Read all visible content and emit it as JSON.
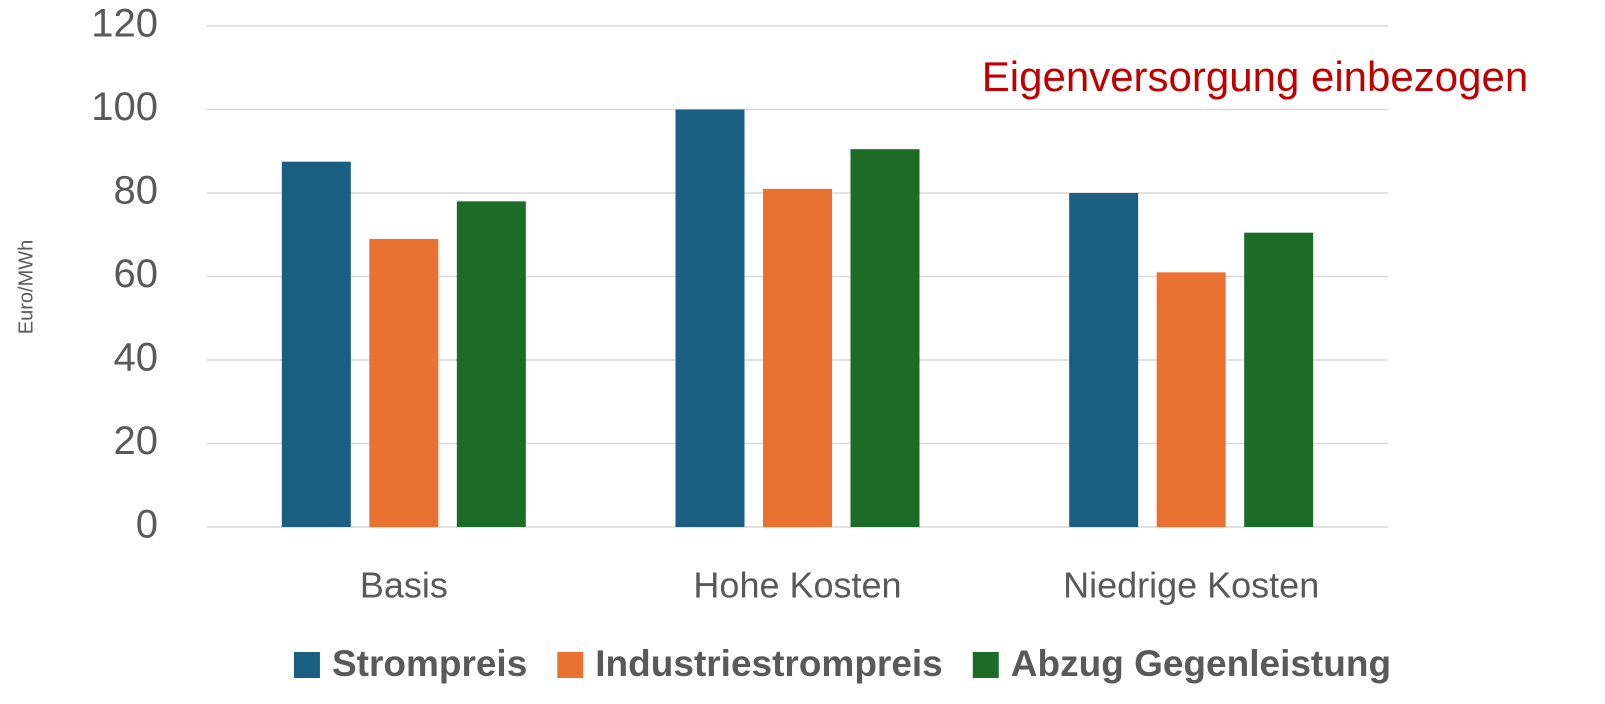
{
  "chart_data": {
    "type": "bar",
    "annotation": "Eigenversorgung einbezogen",
    "y_label": "Euro/MWh",
    "categories": [
      "Basis",
      "Hohe Kosten",
      "Niedrige Kosten"
    ],
    "series": [
      {
        "name": "Strompreis",
        "color": "#1a5f82",
        "values": [
          87.5,
          100,
          80
        ]
      },
      {
        "name": "Industriestrompreis",
        "color": "#e97132",
        "values": [
          69,
          81,
          61
        ]
      },
      {
        "name": "Abzug Gegenleistung",
        "color": "#1c6b27",
        "values": [
          78,
          90.5,
          70.5
        ]
      }
    ],
    "ylim": [
      0,
      120
    ],
    "yticks": [
      0,
      20,
      40,
      60,
      80,
      100,
      120
    ],
    "grid": true,
    "legend": "bottom"
  }
}
